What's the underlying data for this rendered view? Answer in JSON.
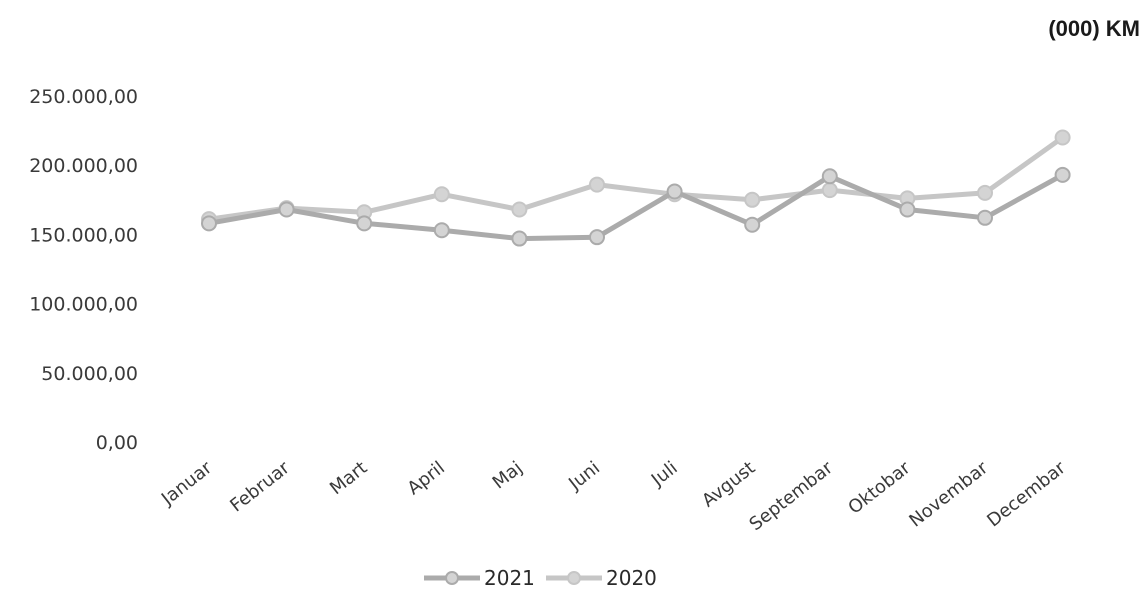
{
  "chart_data": {
    "type": "line",
    "unit_label": "(000) KM",
    "categories": [
      "Januar",
      "Februar",
      "Mart",
      "April",
      "Maj",
      "Juni",
      "Juli",
      "Avgust",
      "Septembar",
      "Oktobar",
      "Novembar",
      "Decembar"
    ],
    "series": [
      {
        "name": "2021",
        "color": "#ababab",
        "values": [
          158000,
          168000,
          158000,
          153000,
          147000,
          148000,
          181000,
          157000,
          192000,
          168000,
          162000,
          193000
        ]
      },
      {
        "name": "2020",
        "color": "#c6c6c6",
        "values": [
          161000,
          169000,
          166000,
          179000,
          168000,
          186000,
          179000,
          175000,
          182000,
          176000,
          180000,
          220000
        ]
      }
    ],
    "yticks": [
      "0,00",
      "50.000,00",
      "100.000,00",
      "150.000,00",
      "200.000,00",
      "250.000,00"
    ],
    "ylim": [
      0,
      250000
    ],
    "grid": false,
    "legend_position": "bottom"
  }
}
